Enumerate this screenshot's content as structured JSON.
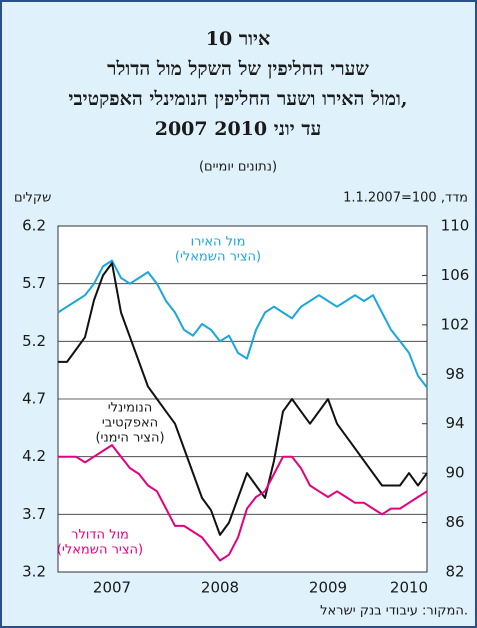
{
  "chart_data": {
    "type": "line",
    "title": [
      "איור 10",
      "שערי החליפין של השקל מול הדולר",
      "ומול האירו ושער החליפין הנומינלי האפקטיבי,",
      "2007 עד יוני 2010"
    ],
    "subtitle": "(נתונים יומיים)",
    "y_label": "שקלים",
    "y2_label": "מדד, 100=1.1.2007",
    "source": "המקור: עיבודי בנק ישראל.",
    "categories": [
      null,
      null,
      null,
      null,
      null,
      null,
      "2007",
      null,
      null,
      null,
      null,
      null,
      null,
      null,
      null,
      null,
      null,
      null,
      "2008",
      null,
      null,
      null,
      null,
      null,
      null,
      null,
      null,
      null,
      null,
      null,
      "2009",
      null,
      null,
      null,
      null,
      null,
      null,
      null,
      null,
      "2010",
      null,
      null
    ],
    "ylim": [
      3.2,
      6.2
    ],
    "yticks": [
      3.2,
      3.7,
      4.2,
      4.7,
      5.2,
      5.7,
      6.2
    ],
    "y2lim": [
      82,
      110
    ],
    "y2ticks": [
      82,
      86,
      90,
      94,
      98,
      102,
      106,
      110
    ],
    "grid": true,
    "series": [
      {
        "name": [
          "מול האירו",
          "(הציר השמאלי)"
        ],
        "color": "#1ba6df",
        "axis": "y",
        "values": [
          5.45,
          5.5,
          5.55,
          5.6,
          5.7,
          5.85,
          5.9,
          5.75,
          5.7,
          5.75,
          5.8,
          5.7,
          5.55,
          5.45,
          5.3,
          5.25,
          5.35,
          5.3,
          5.2,
          5.25,
          5.1,
          5.05,
          5.3,
          5.45,
          5.5,
          5.45,
          5.4,
          5.5,
          5.55,
          5.6,
          5.55,
          5.5,
          5.55,
          5.6,
          5.55,
          5.6,
          5.45,
          5.3,
          5.2,
          5.1,
          4.9,
          4.8
        ]
      },
      {
        "name": [
          "הנומינלי",
          "האפקטיבי",
          "(הציר הימני)"
        ],
        "color": "#111111",
        "axis": "y2",
        "values": [
          99,
          99,
          100,
          101,
          104,
          106,
          107,
          103,
          101,
          99,
          97,
          96,
          95,
          94,
          92,
          90,
          88,
          87,
          85,
          86,
          88,
          90,
          89,
          88,
          91,
          95,
          96,
          95,
          94,
          95,
          96,
          94,
          93,
          92,
          91,
          90,
          89,
          89,
          89,
          90,
          89,
          90
        ]
      },
      {
        "name": [
          "מול הדולר",
          "(הציר השמאלי)"
        ],
        "color": "#e5007d",
        "axis": "y",
        "values": [
          4.2,
          4.2,
          4.2,
          4.15,
          4.2,
          4.25,
          4.3,
          4.2,
          4.1,
          4.05,
          3.95,
          3.9,
          3.75,
          3.6,
          3.6,
          3.55,
          3.5,
          3.4,
          3.3,
          3.35,
          3.5,
          3.75,
          3.85,
          3.9,
          4.05,
          4.2,
          4.2,
          4.1,
          3.95,
          3.9,
          3.85,
          3.9,
          3.85,
          3.8,
          3.8,
          3.75,
          3.7,
          3.75,
          3.75,
          3.8,
          3.85,
          3.9
        ]
      }
    ]
  }
}
